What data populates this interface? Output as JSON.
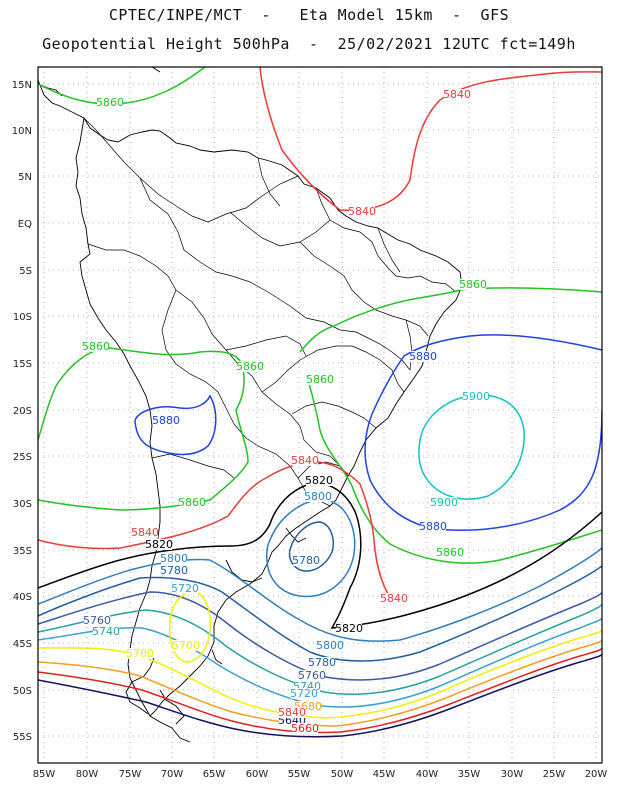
{
  "title_line1": "CPTEC/INPE/MCT  -   Eta Model 15km  -  GFS",
  "title_line2": "Geopotential Height 500hPa  -  25/02/2021 12UTC fct=149h",
  "lat_labels": [
    "15N",
    "10N",
    "5N",
    "EQ",
    "5S",
    "10S",
    "15S",
    "20S",
    "25S",
    "30S",
    "35S",
    "40S",
    "45S",
    "50S",
    "55S"
  ],
  "lon_labels": [
    "85W",
    "80W",
    "75W",
    "70W",
    "65W",
    "60W",
    "55W",
    "50W",
    "45W",
    "40W",
    "35W",
    "30W",
    "25W",
    "20W"
  ],
  "colors": {
    "c5860": "#22c322",
    "c5840": "#e83a3a",
    "c5820": "#000000",
    "c5880": "#2040e0",
    "c5900": "#10c0c0",
    "c5800": "#2f7fc0",
    "c5780": "#1f5fa0",
    "c5760": "#3a5aa0",
    "c5740": "#2aa0a0",
    "c5720": "#3a9fd0",
    "c5700": "#f0f000",
    "c5680": "#f0a020",
    "c5660": "#e02020",
    "c5640": "#101060",
    "coast": "#000000"
  },
  "contour_labels": [
    {
      "id": "l1",
      "text": "5860",
      "c": "c5860"
    },
    {
      "id": "l2",
      "text": "5840",
      "c": "c5840"
    },
    {
      "id": "l3",
      "text": "5840",
      "c": "c5840"
    },
    {
      "id": "l4",
      "text": "5860",
      "c": "c5860"
    },
    {
      "id": "l5",
      "text": "5880",
      "c": "c5880"
    },
    {
      "id": "l6",
      "text": "5860",
      "c": "c5860"
    },
    {
      "id": "l7",
      "text": "5860",
      "c": "c5860"
    },
    {
      "id": "l8",
      "text": "5860",
      "c": "c5860"
    },
    {
      "id": "l9",
      "text": "5900",
      "c": "c5900"
    },
    {
      "id": "l10",
      "text": "5880",
      "c": "c5880"
    },
    {
      "id": "l11",
      "text": "5840",
      "c": "c5840"
    },
    {
      "id": "l12",
      "text": "5820",
      "c": "c5820"
    },
    {
      "id": "l13",
      "text": "5800",
      "c": "c5800"
    },
    {
      "id": "l14",
      "text": "5860",
      "c": "c5860"
    },
    {
      "id": "l15",
      "text": "5900",
      "c": "c5900"
    },
    {
      "id": "l16",
      "text": "5880",
      "c": "c5880"
    },
    {
      "id": "l17",
      "text": "5840",
      "c": "c5840"
    },
    {
      "id": "l18",
      "text": "5820",
      "c": "c5820"
    },
    {
      "id": "l19",
      "text": "5860",
      "c": "c5860"
    },
    {
      "id": "l20",
      "text": "5780",
      "c": "c5780"
    },
    {
      "id": "l21",
      "text": "5840",
      "c": "c5840"
    },
    {
      "id": "l22",
      "text": "5800",
      "c": "c5800"
    },
    {
      "id": "l23",
      "text": "5780",
      "c": "c5780"
    },
    {
      "id": "l24",
      "text": "5720",
      "c": "c5720"
    },
    {
      "id": "l25",
      "text": "5760",
      "c": "c5760"
    },
    {
      "id": "l26",
      "text": "5740",
      "c": "c5740"
    },
    {
      "id": "l27",
      "text": "5700",
      "c": "c5700"
    },
    {
      "id": "l28",
      "text": "5700",
      "c": "c5700"
    },
    {
      "id": "l29",
      "text": "5820",
      "c": "c5820"
    },
    {
      "id": "l30",
      "text": "5800",
      "c": "c5800"
    },
    {
      "id": "l31",
      "text": "5780",
      "c": "c5780"
    },
    {
      "id": "l32",
      "text": "5760",
      "c": "c5760"
    },
    {
      "id": "l33",
      "text": "5740",
      "c": "c5740"
    },
    {
      "id": "l34",
      "text": "5720",
      "c": "c5720"
    },
    {
      "id": "l35",
      "text": "5680",
      "c": "c5680"
    },
    {
      "id": "l36",
      "text": "5640",
      "c": "c5640"
    },
    {
      "id": "l37",
      "text": "5660",
      "c": "c5660"
    },
    {
      "id": "l38",
      "text": "5840",
      "c": "c5840"
    }
  ]
}
